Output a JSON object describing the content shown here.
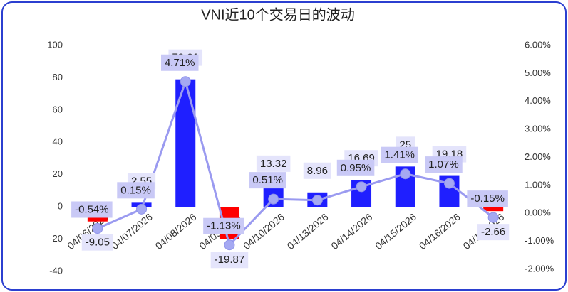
{
  "chart_data": {
    "type": "combo",
    "title": "VNI近10个交易日的波动",
    "categories": [
      "04/06/2026",
      "04/07/2026",
      "04/08/2026",
      "04/09/2026",
      "04/10/2026",
      "04/13/2026",
      "04/14/2026",
      "04/15/2026",
      "04/16/2026",
      "04/17/2026"
    ],
    "series": [
      {
        "type": "bar",
        "color": "#1f1fff",
        "negative_color": "#ff0000",
        "values": [
          -9.05,
          2.55,
          79.01,
          -19.87,
          13.32,
          8.96,
          16.69,
          25,
          19.18,
          -2.66
        ]
      },
      {
        "type": "line",
        "axis": "y2",
        "color": "#9a9af0",
        "values": [
          -0.54,
          0.15,
          4.71,
          -1.13,
          0.51,
          0.47,
          0.95,
          1.41,
          1.07,
          -0.15
        ],
        "value_labels": [
          "-0.54%",
          "0.15%",
          "4.71%",
          "-1.13%",
          "0.51%",
          null,
          "0.95%",
          "1.41%",
          "1.07%",
          "-0.15%"
        ]
      }
    ],
    "ylim": [
      -40,
      100
    ],
    "yticks": [
      -40,
      -20,
      0,
      20,
      40,
      60,
      80,
      100
    ],
    "y2lim": [
      -2,
      6
    ],
    "y2ticks": [
      {
        "value": -2,
        "label": "-2.00%"
      },
      {
        "value": -1,
        "label": "-1.00%"
      },
      {
        "value": 0,
        "label": "0.00%"
      },
      {
        "value": 1,
        "label": "1.00%"
      },
      {
        "value": 2,
        "label": "2.00%"
      },
      {
        "value": 3,
        "label": "3.00%"
      },
      {
        "value": 4,
        "label": "4.00%"
      },
      {
        "value": 5,
        "label": "5.00%"
      },
      {
        "value": 6,
        "label": "6.00%"
      }
    ]
  }
}
